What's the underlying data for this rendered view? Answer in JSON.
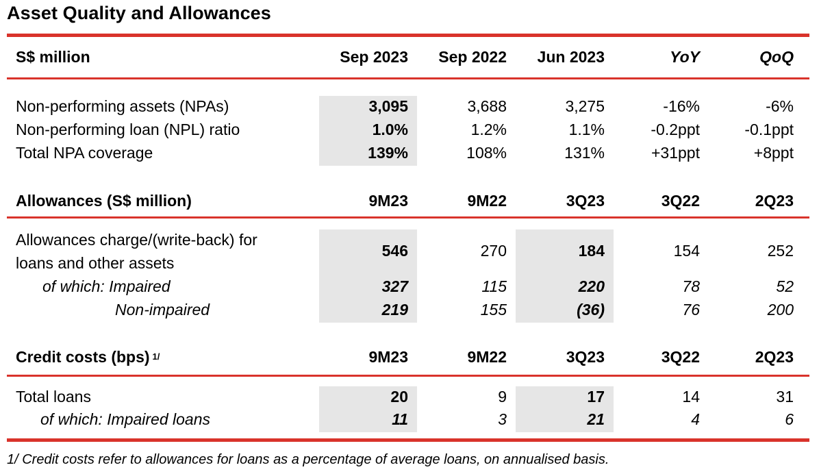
{
  "title": "Asset Quality and Allowances",
  "npa_header": {
    "label": "S$ million",
    "cols": [
      "Sep 2023",
      "Sep 2022",
      "Jun 2023",
      "YoY",
      "QoQ"
    ]
  },
  "npa_rows": [
    {
      "label": "Non-performing assets (NPAs)",
      "v": [
        "3,095",
        "3,688",
        "3,275",
        "-16%",
        "-6%"
      ]
    },
    {
      "label": "Non-performing loan (NPL) ratio",
      "v": [
        "1.0%",
        "1.2%",
        "1.1%",
        "-0.2ppt",
        "-0.1ppt"
      ]
    },
    {
      "label": "Total NPA coverage",
      "v": [
        "139%",
        "108%",
        "131%",
        "+31ppt",
        "+8ppt"
      ]
    }
  ],
  "allow_header": {
    "label": "Allowances (S$ million)",
    "cols": [
      "9M23",
      "9M22",
      "3Q23",
      "3Q22",
      "2Q23"
    ]
  },
  "allow_rows": [
    {
      "label_line1": "Allowances charge/(write-back) for",
      "label_line2": "loans and other assets",
      "v": [
        "546",
        "270",
        "184",
        "154",
        "252"
      ]
    },
    {
      "label": "of which: Impaired",
      "v": [
        "327",
        "115",
        "220",
        "78",
        "52"
      ]
    },
    {
      "label": "Non-impaired",
      "v": [
        "219",
        "155",
        "(36)",
        "76",
        "200"
      ]
    }
  ],
  "credit_header": {
    "label": "Credit costs (bps)",
    "sup": "1/",
    "cols": [
      "9M23",
      "9M22",
      "3Q23",
      "3Q22",
      "2Q23"
    ]
  },
  "credit_rows": [
    {
      "label": "Total loans",
      "v": [
        "20",
        "9",
        "17",
        "14",
        "31"
      ]
    },
    {
      "label": "of which: Impaired loans",
      "v": [
        "11",
        "3",
        "21",
        "4",
        "6"
      ]
    }
  ],
  "footnote": "1/  Credit costs refer to allowances for loans as a percentage of average loans, on annualised basis.",
  "colors": {
    "accent_red": "#d9332b",
    "shade_gray": "#e6e6e6"
  }
}
